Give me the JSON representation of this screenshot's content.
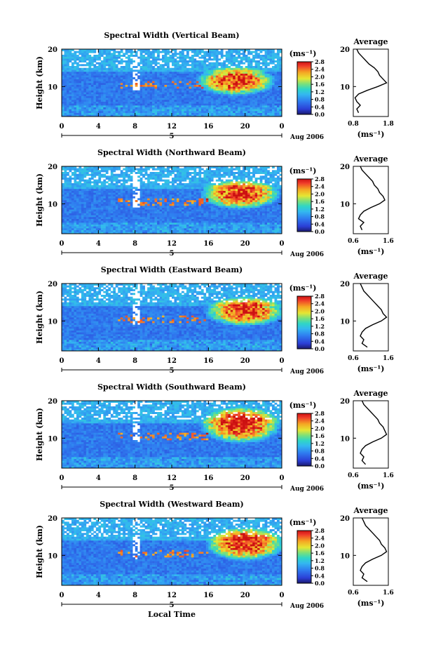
{
  "figure": {
    "xlabel": "Local Time",
    "date_label": "Aug 2006",
    "day_marker": "5",
    "unit_label": "(ms⁻¹)",
    "avg_title": "Average",
    "avg_xlabel": "(ms⁻¹)",
    "ylabel": "Height (km)"
  },
  "chart_data": [
    {
      "type": "heatmap",
      "title": "Spectral Width (Vertical Beam)",
      "xlabel": "",
      "ylabel": "Height (km)",
      "x_ticks": [
        "0",
        "4",
        "8",
        "12",
        "16",
        "20",
        "0"
      ],
      "y_ticks": [
        "10",
        "20"
      ],
      "xlim": [
        0,
        24
      ],
      "ylim": [
        2,
        20
      ],
      "colorbar": {
        "ticks": [
          "0.0",
          "0.4",
          "0.8",
          "1.2",
          "1.6",
          "2.0",
          "2.4",
          "2.8"
        ],
        "range": [
          0,
          2.8
        ]
      },
      "hotspot": {
        "t_center": 19.0,
        "h_center": 11.5,
        "t_span": [
          15,
          24
        ],
        "h_span": [
          8,
          16
        ]
      },
      "average": {
        "title": "Average",
        "xlim": [
          0.8,
          1.8
        ],
        "x_ticks": [
          "0.8",
          "1.8"
        ],
        "y_ticks": [
          "10",
          "20"
        ],
        "height": [
          3,
          4,
          5,
          6,
          7,
          8,
          9,
          10,
          11,
          12,
          13,
          14,
          15,
          16,
          17,
          18,
          19,
          20
        ],
        "values": [
          0.95,
          0.9,
          1.0,
          0.9,
          0.85,
          0.95,
          1.2,
          1.5,
          1.75,
          1.65,
          1.55,
          1.5,
          1.4,
          1.25,
          1.15,
          1.05,
          0.95,
          0.9
        ]
      }
    },
    {
      "type": "heatmap",
      "title": "Spectral Width (Northward Beam)",
      "xlabel": "",
      "ylabel": "Height (km)",
      "x_ticks": [
        "0",
        "4",
        "8",
        "12",
        "16",
        "20",
        "0"
      ],
      "y_ticks": [
        "10",
        "20"
      ],
      "xlim": [
        0,
        24
      ],
      "ylim": [
        2,
        20
      ],
      "colorbar": {
        "ticks": [
          "0.0",
          "0.4",
          "0.8",
          "1.2",
          "1.6",
          "2.0",
          "2.4",
          "2.8"
        ],
        "range": [
          0,
          2.8
        ]
      },
      "hotspot": {
        "t_center": 19.5,
        "h_center": 12.5,
        "t_span": [
          15,
          24
        ],
        "h_span": [
          9,
          17
        ]
      },
      "average": {
        "title": "Average",
        "xlim": [
          0.6,
          1.6
        ],
        "x_ticks": [
          "0.6",
          "1.6"
        ],
        "y_ticks": [
          "10",
          "20"
        ],
        "height": [
          3,
          4,
          5,
          6,
          7,
          8,
          9,
          10,
          11,
          12,
          13,
          14,
          15,
          16,
          17,
          18,
          19,
          20
        ],
        "values": [
          0.85,
          0.8,
          0.9,
          0.75,
          0.8,
          0.9,
          1.1,
          1.35,
          1.5,
          1.45,
          1.35,
          1.3,
          1.2,
          1.15,
          1.05,
          0.95,
          0.85,
          0.8
        ]
      }
    },
    {
      "type": "heatmap",
      "title": "Spectral Width (Eastward Beam)",
      "xlabel": "",
      "ylabel": "Height (km)",
      "x_ticks": [
        "0",
        "4",
        "8",
        "12",
        "16",
        "20",
        "0"
      ],
      "y_ticks": [
        "10",
        "20"
      ],
      "xlim": [
        0,
        24
      ],
      "ylim": [
        2,
        20
      ],
      "colorbar": {
        "ticks": [
          "0.0",
          "0.4",
          "0.8",
          "1.2",
          "1.6",
          "2.0",
          "2.4",
          "2.8"
        ],
        "range": [
          0,
          2.8
        ]
      },
      "hotspot": {
        "t_center": 20.0,
        "h_center": 12.5,
        "t_span": [
          15,
          24
        ],
        "h_span": [
          9,
          17
        ]
      },
      "average": {
        "title": "Average",
        "xlim": [
          0.6,
          1.6
        ],
        "x_ticks": [
          "0.6",
          "1.6"
        ],
        "y_ticks": [
          "10",
          "20"
        ],
        "height": [
          3,
          4,
          5,
          6,
          7,
          8,
          9,
          10,
          11,
          12,
          13,
          14,
          15,
          16,
          17,
          18,
          19,
          20
        ],
        "values": [
          1.0,
          0.85,
          0.9,
          0.8,
          0.85,
          0.95,
          1.15,
          1.4,
          1.55,
          1.45,
          1.4,
          1.3,
          1.2,
          1.1,
          1.0,
          0.9,
          0.85,
          0.8
        ]
      }
    },
    {
      "type": "heatmap",
      "title": "Spectral Width (Southward Beam)",
      "xlabel": "",
      "ylabel": "Height (km)",
      "x_ticks": [
        "0",
        "4",
        "8",
        "12",
        "16",
        "20",
        "0"
      ],
      "y_ticks": [
        "10",
        "20"
      ],
      "xlim": [
        0,
        24
      ],
      "ylim": [
        2,
        20
      ],
      "colorbar": {
        "ticks": [
          "0.0",
          "0.4",
          "0.8",
          "1.2",
          "1.6",
          "2.0",
          "2.4",
          "2.8"
        ],
        "range": [
          0,
          2.8
        ]
      },
      "hotspot": {
        "t_center": 19.5,
        "h_center": 13.5,
        "t_span": [
          15,
          24
        ],
        "h_span": [
          8,
          18
        ]
      },
      "average": {
        "title": "Average",
        "xlim": [
          0.6,
          1.6
        ],
        "x_ticks": [
          "0.6",
          "1.6"
        ],
        "y_ticks": [
          "10",
          "20"
        ],
        "height": [
          3,
          4,
          5,
          6,
          7,
          8,
          9,
          10,
          11,
          12,
          13,
          14,
          15,
          16,
          17,
          18,
          19,
          20
        ],
        "values": [
          0.95,
          0.85,
          0.9,
          0.8,
          0.85,
          0.95,
          1.15,
          1.4,
          1.55,
          1.5,
          1.45,
          1.35,
          1.3,
          1.2,
          1.1,
          1.0,
          0.9,
          0.85
        ]
      }
    },
    {
      "type": "heatmap",
      "title": "Spectral Width (Westward Beam)",
      "xlabel": "Local Time",
      "ylabel": "Height (km)",
      "x_ticks": [
        "0",
        "4",
        "8",
        "12",
        "16",
        "20",
        "0"
      ],
      "y_ticks": [
        "10",
        "20"
      ],
      "xlim": [
        0,
        24
      ],
      "ylim": [
        2,
        20
      ],
      "colorbar": {
        "ticks": [
          "0.0",
          "0.4",
          "0.8",
          "1.2",
          "1.6",
          "2.0",
          "2.4",
          "2.8"
        ],
        "range": [
          0,
          2.8
        ]
      },
      "hotspot": {
        "t_center": 20.0,
        "h_center": 13.0,
        "t_span": [
          15,
          24
        ],
        "h_span": [
          9,
          18
        ]
      },
      "average": {
        "title": "Average",
        "xlim": [
          0.6,
          1.6
        ],
        "x_ticks": [
          "0.6",
          "1.6"
        ],
        "y_ticks": [
          "10",
          "20"
        ],
        "height": [
          3,
          4,
          5,
          6,
          7,
          8,
          9,
          10,
          11,
          12,
          13,
          14,
          15,
          16,
          17,
          18,
          19,
          20
        ],
        "values": [
          1.0,
          0.85,
          0.9,
          0.8,
          0.85,
          0.95,
          1.15,
          1.4,
          1.55,
          1.5,
          1.4,
          1.35,
          1.25,
          1.15,
          1.05,
          0.95,
          0.9,
          0.85
        ]
      }
    }
  ]
}
